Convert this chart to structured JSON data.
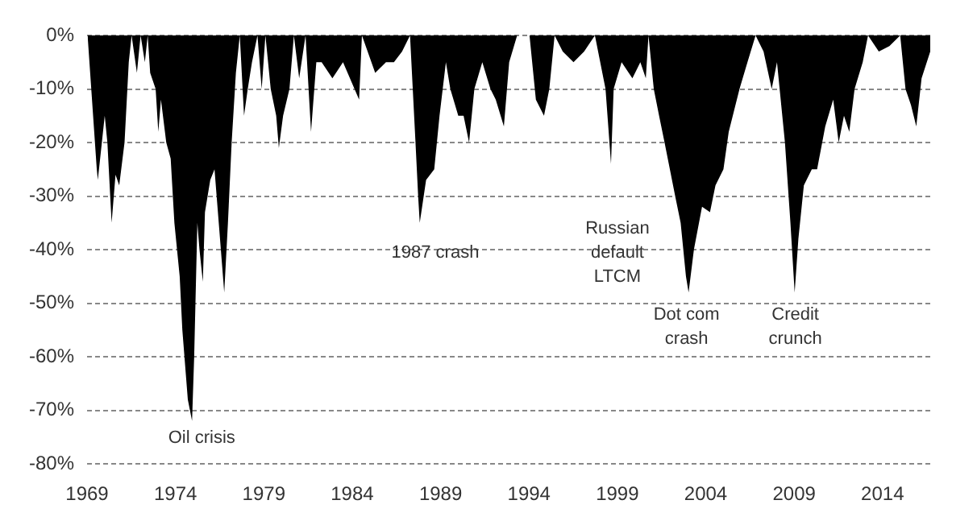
{
  "chart_data": {
    "type": "area",
    "x": [
      1969.03,
      1969.55,
      1969.61,
      1970.0,
      1970.15,
      1970.39,
      1970.61,
      1970.82,
      1971.12,
      1971.36,
      1971.52,
      1971.82,
      1972.03,
      1972.27,
      1972.43,
      1972.57,
      1972.88,
      1973.03,
      1973.18,
      1973.48,
      1973.73,
      1973.94,
      1974.24,
      1974.39,
      1974.7,
      1974.94,
      1975.06,
      1975.24,
      1975.36,
      1975.55,
      1975.67,
      1975.97,
      1976.21,
      1976.45,
      1976.76,
      1976.97,
      1977.18,
      1977.42,
      1977.64,
      1977.88,
      1978.09,
      1978.33,
      1978.64,
      1978.88,
      1979.09,
      1979.39,
      1979.7,
      1979.85,
      1980.09,
      1980.45,
      1980.7,
      1981.0,
      1981.36,
      1981.67,
      1981.97,
      1982.27,
      1982.88,
      1983.48,
      1984.39,
      1984.55,
      1985.3,
      1985.91,
      1986.36,
      1986.82,
      1987.27,
      1987.58,
      1987.73,
      1987.82,
      1988.18,
      1988.64,
      1988.94,
      1989.3,
      1989.55,
      1990.0,
      1990.3,
      1990.61,
      1990.91,
      1991.36,
      1991.82,
      1992.12,
      1992.58,
      1992.88,
      1993.33,
      1994.03,
      1994.39,
      1994.85,
      1995.15,
      1995.45,
      1995.91,
      1996.52,
      1997.12,
      1997.73,
      1998.33,
      1998.64,
      1998.79,
      1999.24,
      1999.85,
      2000.3,
      2000.61,
      2000.76,
      2001.06,
      2001.36,
      2001.67,
      2001.97,
      2002.27,
      2002.58,
      2002.88,
      2003.03,
      2003.33,
      2003.79,
      2004.24,
      2004.55,
      2005.0,
      2005.3,
      2005.91,
      2006.36,
      2006.82,
      2007.27,
      2007.73,
      2008.03,
      2008.48,
      2008.79,
      2009.03,
      2009.24,
      2009.55,
      2010.0,
      2010.3,
      2010.76,
      2011.21,
      2011.52,
      2011.82,
      2012.12,
      2012.42,
      2012.88,
      2013.18,
      2013.79,
      2014.39,
      2015.0,
      2015.3,
      2015.61,
      2015.91,
      2016.21,
      2016.7
    ],
    "series": [
      {
        "color": "#000000",
        "values": [
          0,
          -25,
          -27,
          -15,
          -20,
          -35,
          -26,
          -28,
          -20,
          -5,
          0,
          -7,
          0,
          -5,
          0,
          -7,
          -10,
          -18,
          -12,
          -20,
          -23,
          -35,
          -45,
          -55,
          -68,
          -72,
          -60,
          -35,
          -40,
          -46,
          -33,
          -27,
          -25,
          -35,
          -48,
          -35,
          -20,
          -7,
          0,
          -15,
          -10,
          -5,
          0,
          -10,
          0,
          -10,
          -15,
          -21,
          -15,
          -10,
          0,
          -8,
          0,
          -18,
          -5,
          -5,
          -8,
          -5,
          -12,
          0,
          -7,
          -5,
          -5,
          -3,
          0,
          -20,
          -30,
          -35,
          -27,
          -25,
          -15,
          -5,
          -10,
          -15,
          -15,
          -20,
          -10,
          -5,
          -10,
          -12,
          -17,
          -5,
          0,
          0,
          -12,
          -15,
          -10,
          0,
          -3,
          -5,
          -3,
          0,
          -10,
          -24,
          -10,
          -5,
          -8,
          -5,
          -8,
          0,
          -10,
          -15,
          -20,
          -25,
          -30,
          -35,
          -45,
          -48,
          -40,
          -32,
          -33,
          -28,
          -25,
          -18,
          -10,
          -5,
          0,
          -3,
          -10,
          -5,
          -20,
          -35,
          -48,
          -38,
          -28,
          -25,
          -25,
          -17,
          -12,
          -20,
          -15,
          -18,
          -10,
          -5,
          0,
          -3,
          -2,
          0,
          -10,
          -13,
          -17,
          -8,
          -3
        ]
      }
    ],
    "xlim": [
      1969,
      2016.7
    ],
    "xticks": [
      1969,
      1974,
      1979,
      1984,
      1989,
      1994,
      1999,
      2004,
      2009,
      2014
    ],
    "ylim": [
      -80,
      0
    ],
    "yticks": [
      {
        "value": 0,
        "label": "0%"
      },
      {
        "value": -10,
        "label": "-10%"
      },
      {
        "value": -20,
        "label": "-20%"
      },
      {
        "value": -30,
        "label": "-30%"
      },
      {
        "value": -40,
        "label": "-40%"
      },
      {
        "value": -50,
        "label": "-50%"
      },
      {
        "value": -60,
        "label": "-60%"
      },
      {
        "value": -70,
        "label": "-70%"
      },
      {
        "value": -80,
        "label": "-80%"
      }
    ],
    "grid": "y",
    "annotations": [
      "Oil crisis",
      "1987 crash",
      "Russian\ndefault\nLTCM",
      "Dot com\ncrash",
      "Credit\ncrunch"
    ]
  }
}
